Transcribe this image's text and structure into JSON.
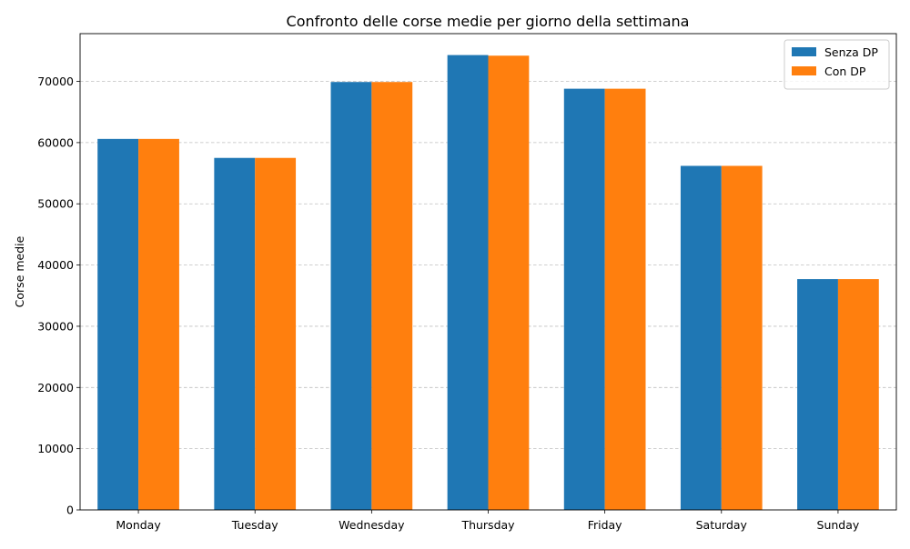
{
  "chart_data": {
    "type": "bar",
    "title": "Confronto delle corse medie per giorno della settimana",
    "xlabel": "",
    "ylabel": "Corse medie",
    "categories": [
      "Monday",
      "Tuesday",
      "Wednesday",
      "Thursday",
      "Friday",
      "Saturday",
      "Sunday"
    ],
    "series": [
      {
        "name": "Senza DP",
        "color": "#1f77b4",
        "values": [
          60600,
          57500,
          69900,
          74300,
          68800,
          56200,
          37700
        ]
      },
      {
        "name": "Con DP",
        "color": "#ff7f0e",
        "values": [
          60600,
          57500,
          69900,
          74200,
          68800,
          56200,
          37700
        ]
      }
    ],
    "ylim": [
      0,
      77800
    ],
    "yticks": [
      0,
      10000,
      20000,
      30000,
      40000,
      50000,
      60000,
      70000
    ],
    "grid": "y-dashed",
    "legend_position": "top-right"
  }
}
